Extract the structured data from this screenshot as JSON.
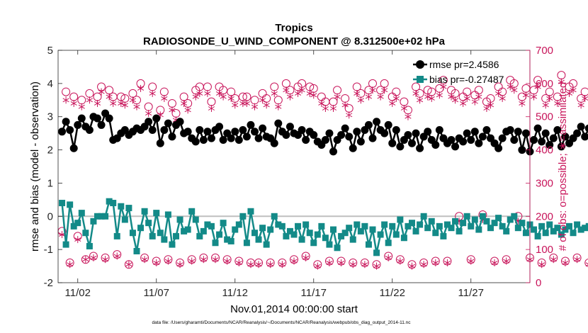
{
  "chart_data": {
    "type": "line",
    "title": "Tropics",
    "subtitle": "RADIOSONDE_U_WIND_COMPONENT @ 8.312500e+02 hPa",
    "xlabel": "Nov.01,2014 00:00:00 start",
    "ylabel": "rmse and bias (model - observation)",
    "ylabel_right": "# of obs: o=possible; ∗=assimilated",
    "footnote": "data file: /Users/gharamti/Documents/NCAR/Reanalysis/~/Documents/NCAR/Reanalysis/webpub/obs_diag_output_2014-11.nc",
    "xlim": [
      0.75,
      30.75
    ],
    "ylim": [
      -2,
      5
    ],
    "ylim_right": [
      0,
      700
    ],
    "x_ticks": [
      2,
      7,
      12,
      17,
      22,
      27
    ],
    "x_tick_labels": [
      "11/02",
      "11/07",
      "11/12",
      "11/17",
      "11/22",
      "11/27"
    ],
    "y_ticks": [
      -2,
      -1,
      0,
      1,
      2,
      3,
      4,
      5
    ],
    "y_tick_labels": [
      "-2",
      "-1",
      "0",
      "1",
      "2",
      "3",
      "4",
      "5"
    ],
    "y_ticks_right": [
      0,
      100,
      200,
      300,
      400,
      500,
      600,
      700
    ],
    "y_tick_labels_right": [
      "0",
      "100",
      "200",
      "300",
      "400",
      "500",
      "600",
      "700"
    ],
    "zero_line": 0,
    "colors": {
      "rmse": "#000000",
      "bias": "#138a88",
      "counts": "#c8145a",
      "zero_line": "#bfbfbf"
    },
    "legend_position": "top-right",
    "series": [
      {
        "name": "rmse pr=2.4586",
        "role": "rmse",
        "marker": "circle",
        "values": [
          2.55,
          2.85,
          2.6,
          2.05,
          2.75,
          2.95,
          2.7,
          2.6,
          3.0,
          2.95,
          2.75,
          3.1,
          2.95,
          2.3,
          2.35,
          2.5,
          2.6,
          2.45,
          2.55,
          2.65,
          2.6,
          2.7,
          2.85,
          2.6,
          2.95,
          2.2,
          2.6,
          2.8,
          2.4,
          2.75,
          2.85,
          2.5,
          2.55,
          2.35,
          2.25,
          2.6,
          2.3,
          2.55,
          2.35,
          2.6,
          2.7,
          2.3,
          2.5,
          2.35,
          2.55,
          2.3,
          2.6,
          2.4,
          2.75,
          2.55,
          2.35,
          2.65,
          2.4,
          2.35,
          2.2,
          2.8,
          2.55,
          2.45,
          2.7,
          2.5,
          2.45,
          2.6,
          2.3,
          2.55,
          2.45,
          2.25,
          2.15,
          2.3,
          2.5,
          1.95,
          2.3,
          2.45,
          2.65,
          2.4,
          2.05,
          2.55,
          2.25,
          2.6,
          2.75,
          2.35,
          2.85,
          2.6,
          2.5,
          2.75,
          2.2,
          2.6,
          2.1,
          2.3,
          2.45,
          2.2,
          2.5,
          2.05,
          2.4,
          2.55,
          2.3,
          2.15,
          2.6,
          2.35,
          2.2,
          2.3,
          2.1,
          2.35,
          2.25,
          2.5,
          2.3,
          2.55,
          2.2,
          2.4,
          2.6,
          2.35,
          2.2,
          2.05,
          2.35,
          2.55,
          2.6,
          2.3,
          2.55,
          2.0,
          2.5,
          1.95,
          2.3,
          2.65,
          2.25,
          2.5,
          2.15,
          2.35,
          2.6,
          2.1,
          2.4,
          2.2,
          2.35,
          2.5,
          2.7,
          2.4,
          2.65,
          2.55,
          2.3,
          2.5,
          2.35,
          2.45,
          2.8
        ]
      },
      {
        "name": "bias pr=-0.27487",
        "role": "bias",
        "marker": "square",
        "values": [
          0.4,
          -0.85,
          0.35,
          -0.3,
          -0.2,
          0.1,
          -0.5,
          -0.9,
          -0.15,
          0.0,
          0.0,
          0.0,
          0.45,
          0.4,
          -0.6,
          0.3,
          -0.1,
          0.25,
          -0.5,
          -1.05,
          -0.35,
          0.15,
          -0.2,
          -0.6,
          0.1,
          -0.5,
          -0.7,
          0.05,
          -0.85,
          -0.6,
          -0.1,
          -0.45,
          -0.4,
          0.15,
          -0.1,
          -0.6,
          -0.45,
          -0.25,
          -0.3,
          -0.8,
          -0.55,
          -0.2,
          -0.7,
          -0.75,
          -0.4,
          -0.25,
          0.0,
          -0.8,
          0.15,
          -0.5,
          -0.7,
          -0.35,
          -0.85,
          -0.4,
          0.0,
          -0.25,
          -0.3,
          -0.6,
          -0.45,
          -0.55,
          -0.3,
          -0.7,
          -0.25,
          -0.5,
          -0.8,
          -0.55,
          -0.3,
          -0.65,
          -0.85,
          -0.4,
          -0.95,
          -0.6,
          -0.5,
          -0.35,
          -0.7,
          -0.25,
          -0.45,
          -0.3,
          -0.85,
          -0.4,
          -1.1,
          -0.55,
          -0.25,
          -0.8,
          -0.3,
          -0.55,
          -0.1,
          -0.65,
          -0.3,
          -0.2,
          -0.45,
          -0.25,
          0.0,
          -0.35,
          -0.15,
          -0.5,
          -0.3,
          -0.6,
          -0.25,
          -0.35,
          -0.15,
          -0.45,
          -0.2,
          0.0,
          -0.3,
          -0.1,
          -0.4,
          0.0,
          -0.15,
          -0.35,
          -0.2,
          -0.05,
          -0.3,
          -0.45,
          -0.1,
          0.0,
          -0.35,
          -0.2,
          -0.5,
          -0.25,
          -0.4,
          -0.6,
          -0.3,
          -0.5,
          -0.25,
          -0.45,
          -0.35,
          -0.55,
          -0.4,
          -0.3,
          -0.5,
          -0.25,
          -0.4,
          -0.35,
          -0.3,
          -0.45,
          0.45,
          -0.35,
          0.15,
          -0.3,
          0.15
        ]
      },
      {
        "name": "possible",
        "role": "count_possible",
        "axis": "right",
        "marker": "open-circle",
        "values": [
          155,
          575,
          60,
          560,
          140,
          550,
          70,
          570,
          80,
          560,
          590,
          75,
          580,
          560,
          85,
          560,
          555,
          55,
          570,
          550,
          600,
          75,
          530,
          590,
          65,
          520,
          575,
          70,
          540,
          510,
          60,
          560,
          540,
          70,
          580,
          590,
          75,
          590,
          545,
          75,
          590,
          580,
          70,
          575,
          555,
          65,
          560,
          560,
          60,
          550,
          60,
          570,
          555,
          60,
          590,
          550,
          60,
          600,
          580,
          70,
          590,
          600,
          80,
          590,
          585,
          55,
          560,
          545,
          65,
          545,
          580,
          65,
          555,
          525,
          60,
          590,
          570,
          60,
          580,
          600,
          55,
          580,
          600,
          80,
          560,
          575,
          70,
          545,
          520,
          55,
          590,
          570,
          60,
          580,
          575,
          65,
          585,
          610,
          65,
          580,
          570,
          200,
          560,
          575,
          70,
          565,
          580,
          205,
          545,
          555,
          65,
          590,
          575,
          70,
          610,
          600,
          200,
          560,
          585,
          75,
          580,
          610,
          60,
          555,
          575,
          75,
          560,
          625,
          65,
          590,
          600,
          75,
          555,
          575,
          60,
          560,
          590,
          70,
          585,
          100
        ]
      },
      {
        "name": "assimilated",
        "role": "count_assimilated",
        "axis": "right",
        "marker": "asterisk",
        "values": [
          145,
          550,
          55,
          540,
          130,
          530,
          70,
          550,
          75,
          540,
          575,
          70,
          560,
          540,
          80,
          540,
          535,
          55,
          550,
          530,
          585,
          70,
          510,
          570,
          60,
          505,
          555,
          65,
          520,
          490,
          55,
          540,
          520,
          65,
          560,
          570,
          70,
          570,
          525,
          70,
          570,
          560,
          65,
          555,
          535,
          60,
          540,
          540,
          55,
          530,
          55,
          550,
          535,
          55,
          570,
          530,
          55,
          580,
          560,
          65,
          570,
          580,
          75,
          570,
          565,
          50,
          540,
          525,
          60,
          525,
          560,
          60,
          535,
          505,
          55,
          570,
          550,
          55,
          560,
          580,
          50,
          560,
          580,
          75,
          540,
          555,
          65,
          525,
          500,
          50,
          570,
          550,
          55,
          560,
          555,
          60,
          565,
          590,
          60,
          560,
          550,
          185,
          540,
          555,
          65,
          545,
          560,
          190,
          525,
          535,
          60,
          570,
          555,
          65,
          590,
          580,
          185,
          540,
          565,
          70,
          560,
          590,
          55,
          535,
          555,
          70,
          540,
          605,
          60,
          570,
          580,
          70,
          535,
          555,
          55,
          540,
          570,
          65,
          565,
          0
        ]
      }
    ]
  }
}
